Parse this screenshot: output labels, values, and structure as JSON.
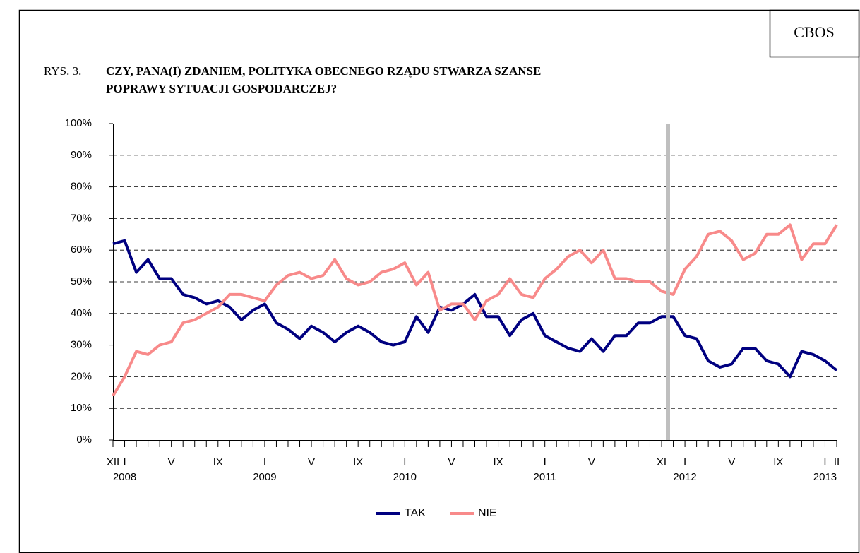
{
  "chart_data": {
    "type": "line",
    "badge": "CBOS",
    "figure_label": "RYS. 3.",
    "title_lines": [
      "CZY, PANA(I) ZDANIEM, POLITYKA OBECNEGO RZĄDU STWARZA SZANSE",
      "POPRAWY SYTUACJI GOSPODARCZEJ?"
    ],
    "categories": [
      "XII",
      "I",
      null,
      null,
      null,
      "V",
      null,
      null,
      null,
      "IX",
      null,
      null,
      null,
      "I",
      null,
      null,
      null,
      "V",
      null,
      null,
      null,
      "IX",
      null,
      null,
      null,
      "I",
      null,
      null,
      null,
      "V",
      null,
      null,
      null,
      "IX",
      null,
      null,
      null,
      "I",
      null,
      null,
      null,
      "V",
      null,
      null,
      null,
      null,
      null,
      "XI",
      null,
      "I",
      null,
      null,
      null,
      "V",
      null,
      null,
      null,
      "IX",
      null,
      null,
      null,
      "I",
      "II"
    ],
    "years": [
      null,
      "2008",
      null,
      null,
      null,
      null,
      null,
      null,
      null,
      null,
      null,
      null,
      null,
      "2009",
      null,
      null,
      null,
      null,
      null,
      null,
      null,
      null,
      null,
      null,
      null,
      "2010",
      null,
      null,
      null,
      null,
      null,
      null,
      null,
      null,
      null,
      null,
      null,
      "2011",
      null,
      null,
      null,
      null,
      null,
      null,
      null,
      null,
      null,
      null,
      null,
      "2012",
      null,
      null,
      null,
      null,
      null,
      null,
      null,
      null,
      null,
      null,
      null,
      "2013",
      null
    ],
    "series": [
      {
        "name": "TAK",
        "color": "#000080",
        "values": [
          62,
          63,
          53,
          57,
          51,
          51,
          46,
          45,
          43,
          44,
          42,
          38,
          41,
          43,
          37,
          35,
          32,
          36,
          34,
          31,
          34,
          36,
          34,
          31,
          30,
          31,
          39,
          34,
          42,
          41,
          43,
          46,
          39,
          39,
          33,
          38,
          40,
          33,
          31,
          29,
          28,
          32,
          28,
          33,
          33,
          37,
          37,
          39,
          39,
          33,
          32,
          25,
          23,
          24,
          29,
          29,
          25,
          24,
          20,
          28,
          27,
          25,
          22
        ]
      },
      {
        "name": "NIE",
        "color": "#f88a8a",
        "values": [
          14,
          20,
          28,
          27,
          30,
          31,
          37,
          38,
          40,
          42,
          46,
          46,
          45,
          44,
          49,
          52,
          53,
          51,
          52,
          57,
          51,
          49,
          50,
          53,
          54,
          56,
          49,
          53,
          41,
          43,
          43,
          38,
          44,
          46,
          51,
          46,
          45,
          51,
          54,
          58,
          60,
          56,
          60,
          51,
          51,
          50,
          50,
          47,
          46,
          54,
          58,
          65,
          66,
          63,
          57,
          59,
          65,
          65,
          68,
          57,
          62,
          62,
          68
        ]
      }
    ],
    "ylim": [
      0,
      100
    ],
    "yticks": [
      {
        "value": 0,
        "label": "0%"
      },
      {
        "value": 10,
        "label": "10%"
      },
      {
        "value": 20,
        "label": "20%"
      },
      {
        "value": 30,
        "label": "30%"
      },
      {
        "value": 40,
        "label": "40%"
      },
      {
        "value": 50,
        "label": "50%"
      },
      {
        "value": 60,
        "label": "60%"
      },
      {
        "value": 70,
        "label": "70%"
      },
      {
        "value": 80,
        "label": "80%"
      },
      {
        "value": 90,
        "label": "90%"
      },
      {
        "value": 100,
        "label": "100%"
      }
    ],
    "grid": true,
    "legend": "bottom"
  }
}
